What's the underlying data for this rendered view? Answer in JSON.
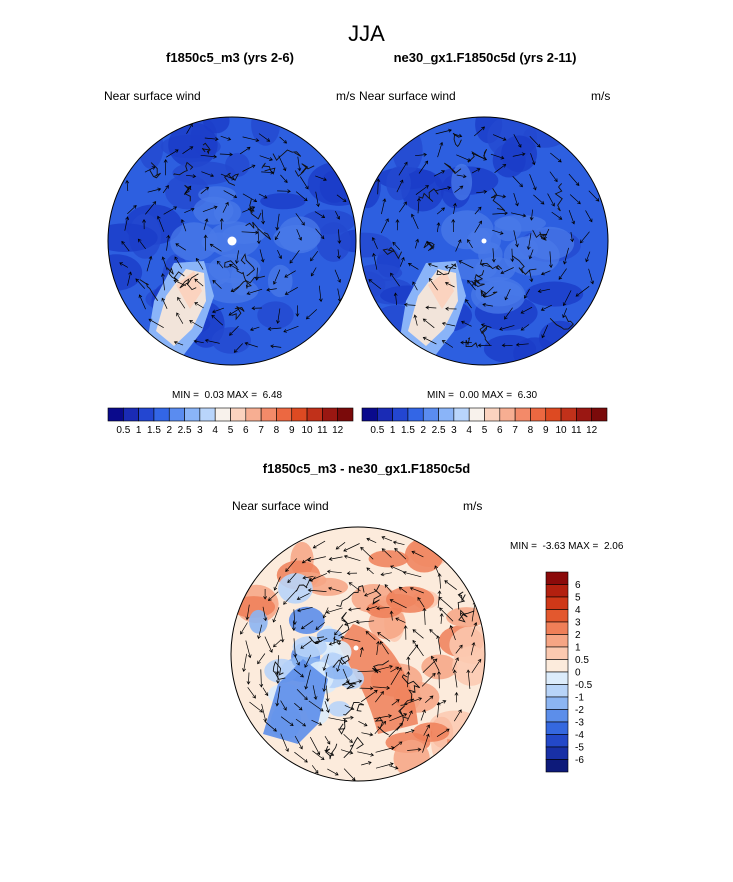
{
  "page": {
    "title": "JJA"
  },
  "panels": [
    {
      "case_title": "f1850c5_m3 (yrs 2-6)",
      "left_label": "Near surface wind",
      "units": "m/s",
      "min_text": "MIN =",
      "min_value": "0.03",
      "max_text": "MAX =",
      "max_value": "6.48"
    },
    {
      "case_title": "ne30_gx1.F1850c5d (yrs 2-11)",
      "left_label": "Near surface wind",
      "units": "m/s",
      "min_text": "MIN =",
      "min_value": "0.00",
      "max_text": "MAX =",
      "max_value": "6.30"
    }
  ],
  "diff_panel": {
    "case_title": "f1850c5_m3 - ne30_gx1.F1850c5d",
    "left_label": "Near surface wind",
    "units": "m/s",
    "min_text": "MIN =",
    "min_value": "-3.63",
    "max_text": "MAX =",
    "max_value": "2.06"
  },
  "chart_data": [
    {
      "type": "heatmap",
      "projection": "north polar stereographic",
      "title": "f1850c5_m3 (yrs 2-6)",
      "variable": "Near surface wind",
      "units": "m/s",
      "min": 0.03,
      "max": 6.48,
      "colorbar": {
        "orientation": "horizontal",
        "levels": [
          "0.5",
          "1",
          "1.5",
          "2",
          "2.5",
          "3",
          "4",
          "5",
          "6",
          "7",
          "8",
          "9",
          "10",
          "11",
          "12"
        ],
        "colors": [
          "#0a0a8c",
          "#1a2bb5",
          "#2346d1",
          "#3366e6",
          "#5a8cf0",
          "#8ab4f8",
          "#b9d5fb",
          "#f8f2ec",
          "#fbd3bf",
          "#f7ae92",
          "#f38a69",
          "#ec6841",
          "#dd4a22",
          "#c1311a",
          "#9a1712",
          "#7a0a0a"
        ]
      },
      "overlay": "wind vectors"
    },
    {
      "type": "heatmap",
      "projection": "north polar stereographic",
      "title": "ne30_gx1.F1850c5d (yrs 2-11)",
      "variable": "Near surface wind",
      "units": "m/s",
      "min": 0.0,
      "max": 6.3,
      "colorbar": {
        "orientation": "horizontal",
        "levels": [
          "0.5",
          "1",
          "1.5",
          "2",
          "2.5",
          "3",
          "4",
          "5",
          "6",
          "7",
          "8",
          "9",
          "10",
          "11",
          "12"
        ],
        "colors": [
          "#0a0a8c",
          "#1a2bb5",
          "#2346d1",
          "#3366e6",
          "#5a8cf0",
          "#8ab4f8",
          "#b9d5fb",
          "#f8f2ec",
          "#fbd3bf",
          "#f7ae92",
          "#f38a69",
          "#ec6841",
          "#dd4a22",
          "#c1311a",
          "#9a1712",
          "#7a0a0a"
        ]
      },
      "overlay": "wind vectors"
    },
    {
      "type": "heatmap",
      "projection": "north polar stereographic",
      "title": "f1850c5_m3 - ne30_gx1.F1850c5d",
      "variable": "Near surface wind",
      "units": "m/s",
      "min": -3.63,
      "max": 2.06,
      "colorbar": {
        "orientation": "vertical",
        "levels": [
          "6",
          "5",
          "4",
          "3",
          "2",
          "1",
          "0.5",
          "0",
          "-0.5",
          "-1",
          "-2",
          "-3",
          "-4",
          "-5",
          "-6"
        ],
        "colors": [
          "#8b0a0a",
          "#b3200f",
          "#cf3818",
          "#e3582e",
          "#ef7f58",
          "#f6a584",
          "#fbc9b0",
          "#fcebdc",
          "#dcecfb",
          "#b8d4f8",
          "#8cb5f2",
          "#5c8eea",
          "#3568df",
          "#2348c8",
          "#1830a6",
          "#0d1a7a"
        ]
      },
      "overlay": "wind vectors"
    }
  ]
}
